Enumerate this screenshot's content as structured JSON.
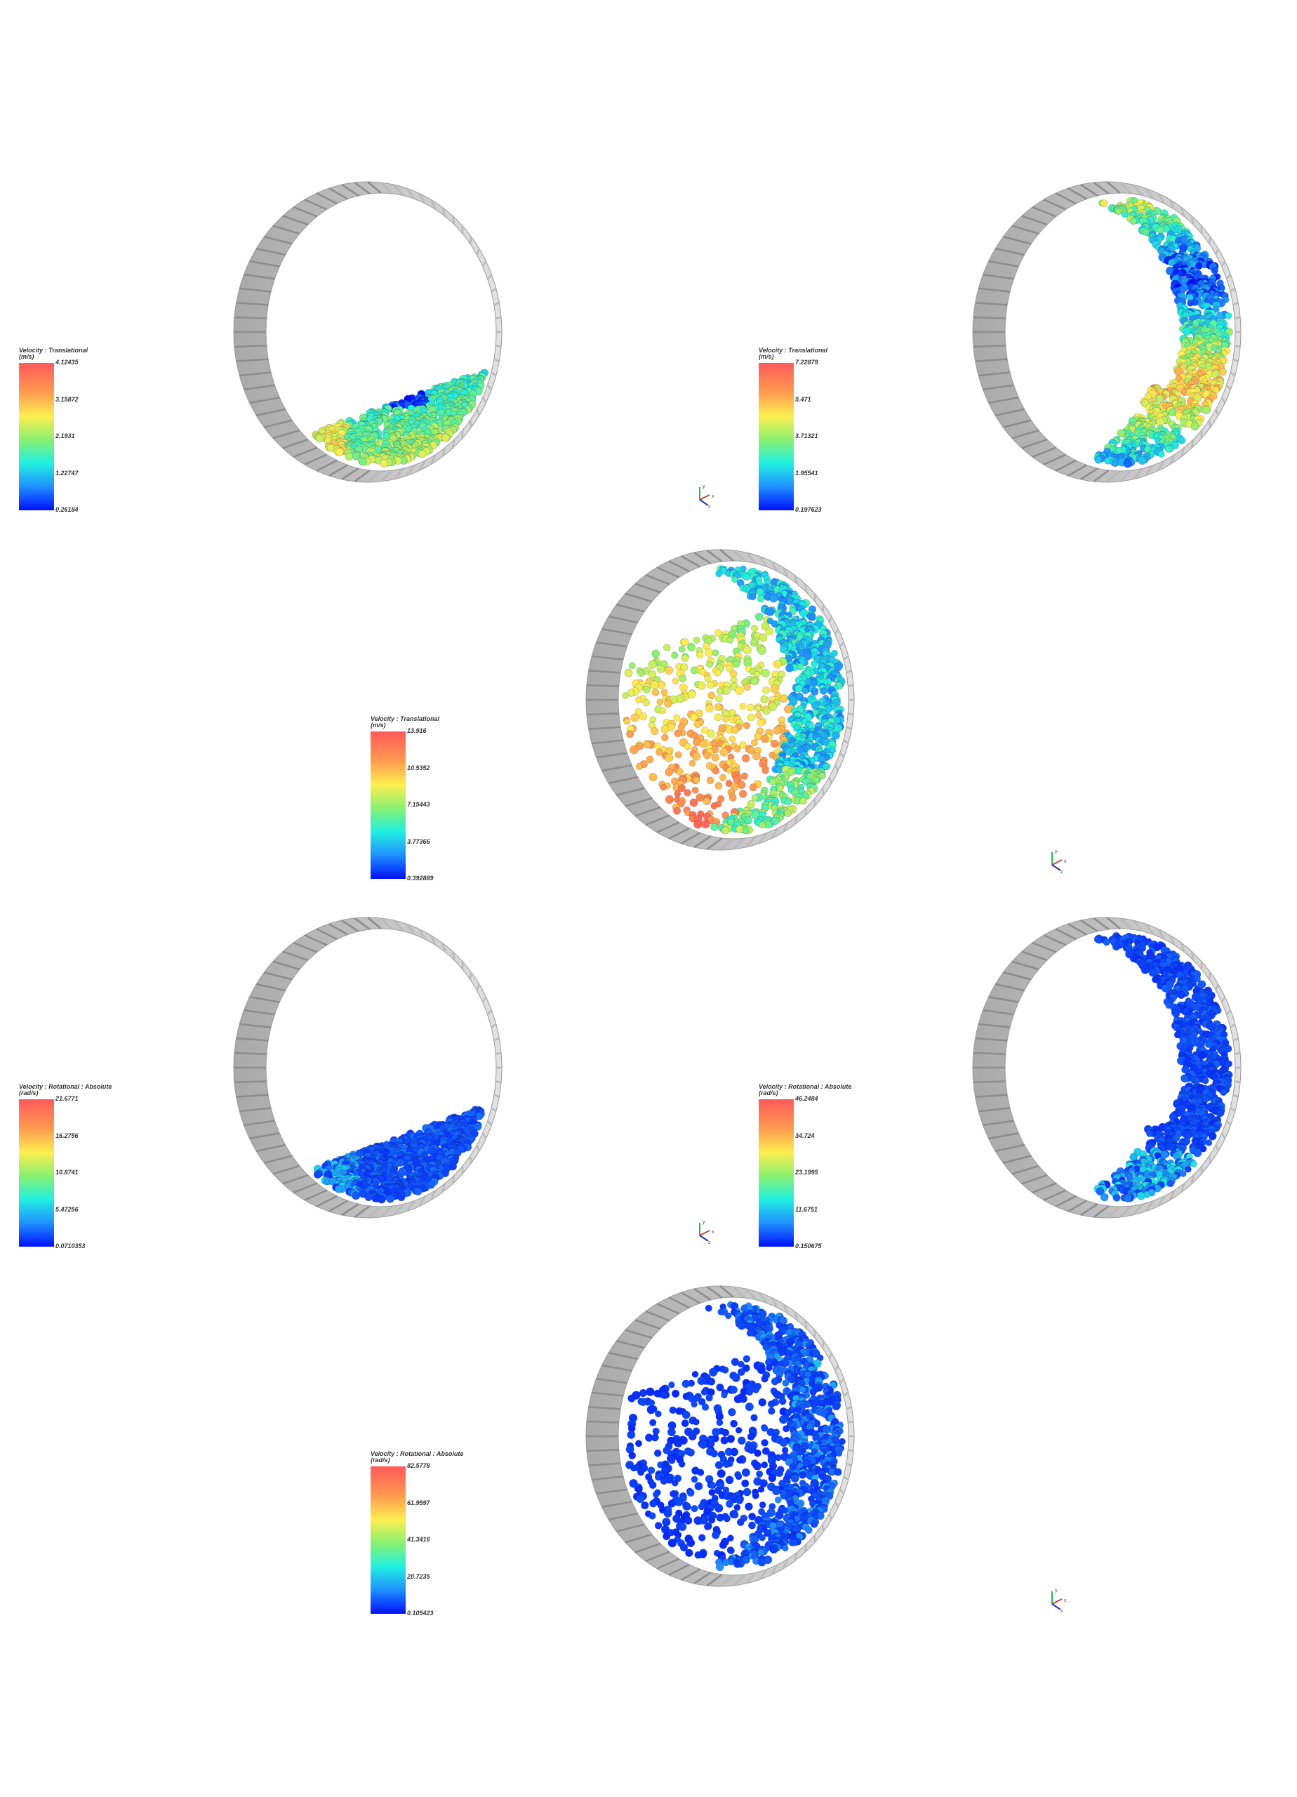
{
  "panels": [
    {
      "legend": {
        "title": "Velocity : Translational",
        "unit": "(m/s)",
        "ticks": [
          "4.12435",
          "3.15872",
          "2.1931",
          "1.22747",
          "0.26184"
        ]
      },
      "triad": null
    },
    {
      "legend": {
        "title": "Velocity : Translational",
        "unit": "(m/s)",
        "ticks": [
          "7.22879",
          "5.471",
          "3.71321",
          "1.95541",
          "0.197623"
        ]
      },
      "triad": {
        "x": "x",
        "y": "y",
        "z": "z"
      }
    },
    {
      "legend": {
        "title": "Velocity : Translational",
        "unit": "(m/s)",
        "ticks": [
          "13.916",
          "10.5352",
          "7.15443",
          "3.77366",
          "0.392889"
        ]
      },
      "triad": {
        "x": "x",
        "y": "y",
        "z": "z"
      }
    },
    {
      "legend": {
        "title": "Velocity : Rotational : Absolute",
        "unit": "(rad/s)",
        "ticks": [
          "21.6771",
          "16.2756",
          "10.8741",
          "5.47256",
          "0.0710353"
        ]
      },
      "triad": {
        "x": "x",
        "y": "y",
        "z": "z"
      }
    },
    {
      "legend": {
        "title": "Velocity : Rotational : Absolute",
        "unit": "(rad/s)",
        "ticks": [
          "46.2484",
          "34.724",
          "23.1995",
          "11.6751",
          "0.150675"
        ]
      },
      "triad": null
    },
    {
      "legend": {
        "title": "Velocity : Rotational : Absolute",
        "unit": "(rad/s)",
        "ticks": [
          "82.5778",
          "61.9597",
          "41.3416",
          "20.7235",
          "0.105423"
        ]
      },
      "triad": {
        "x": "x",
        "y": "y",
        "z": "z"
      }
    }
  ],
  "colors": {
    "drum_dark": "#a9a9a9",
    "drum_light": "#e2e2e2",
    "colormap": [
      "#0010ff",
      "#2090ff",
      "#20f0e0",
      "#8af070",
      "#ffee50",
      "#ff9a50",
      "#ff5a5a"
    ]
  }
}
